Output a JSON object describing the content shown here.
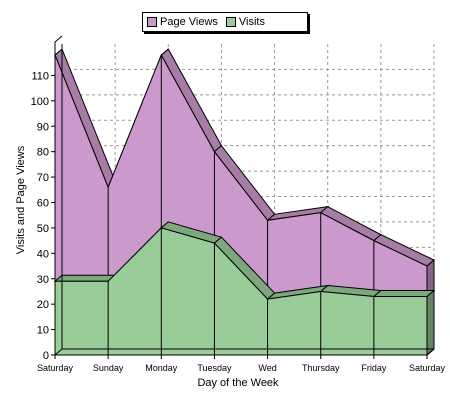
{
  "chart_data": {
    "type": "area",
    "title": "",
    "xlabel": "Day of the Week",
    "ylabel": "Visits and Page Views",
    "categories": [
      "Saturday",
      "Sunday",
      "Monday",
      "Tuesday",
      "Wed",
      "Thursday",
      "Friday",
      "Saturday"
    ],
    "ylim": [
      0,
      120
    ],
    "yticks": [
      0,
      10,
      20,
      30,
      40,
      50,
      60,
      70,
      80,
      90,
      100,
      110
    ],
    "grid": true,
    "legend_position": "top",
    "series": [
      {
        "name": "Page Views",
        "color": "#cc99cc",
        "values": [
          118,
          66,
          118,
          80,
          53,
          56,
          45,
          35
        ]
      },
      {
        "name": "Visits",
        "color": "#99cc99",
        "values": [
          29,
          29,
          50,
          44,
          22,
          25,
          23,
          23
        ]
      }
    ]
  }
}
